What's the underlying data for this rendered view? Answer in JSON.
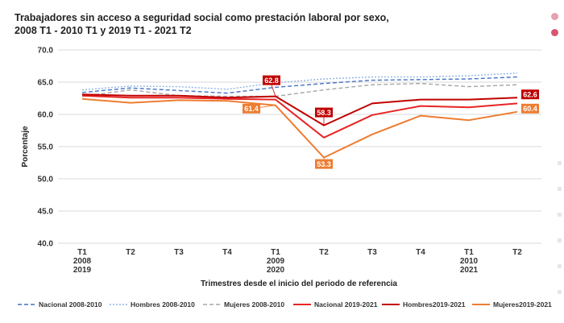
{
  "chart_data": {
    "type": "line",
    "title_lines": [
      "Trabajadores sin acceso a seguridad social como prestación laboral por sexo,",
      "2008 T1 - 2010 T1 y 2019 T1 - 2021 T2"
    ],
    "xlabel": "Trimestres desde el inicio del periodo de referencia",
    "ylabel": "Porcentaje",
    "ylim": [
      40,
      70
    ],
    "yticks": [
      "40.0",
      "45.0",
      "50.0",
      "55.0",
      "60.0",
      "65.0",
      "70.0"
    ],
    "categories": [
      [
        "T1",
        "2008",
        "2019"
      ],
      [
        "T2"
      ],
      [
        "T3"
      ],
      [
        "T4"
      ],
      [
        "T1",
        "2009",
        "2020"
      ],
      [
        "T2"
      ],
      [
        "T3"
      ],
      [
        "T4"
      ],
      [
        "T1",
        "2010",
        "2021"
      ],
      [
        "T2"
      ]
    ],
    "series": [
      {
        "name": "Nacional 2008-2010",
        "color": "#4472c4",
        "style": "dashed",
        "values": [
          63.4,
          64.1,
          63.7,
          63.3,
          64.2,
          64.8,
          65.3,
          65.4,
          65.5,
          65.8
        ]
      },
      {
        "name": "Hombres  2008-2010",
        "color": "#8fb4e3",
        "style": "dotted",
        "values": [
          63.8,
          64.4,
          64.3,
          63.9,
          64.9,
          65.5,
          65.8,
          65.8,
          66.0,
          66.4
        ]
      },
      {
        "name": "Mujeres 2008-2010",
        "color": "#a5a5a5",
        "style": "dashed",
        "values": [
          62.8,
          63.8,
          62.9,
          62.8,
          62.8,
          63.8,
          64.6,
          64.8,
          64.3,
          64.6
        ]
      },
      {
        "name": "Nacional 2019-2021",
        "color": "#e82424",
        "style": "solid",
        "values": [
          62.9,
          62.6,
          62.6,
          62.4,
          62.3,
          56.4,
          59.9,
          61.3,
          61.1,
          61.7
        ]
      },
      {
        "name": "Hombres2019-2021",
        "color": "#c00000",
        "style": "solid",
        "values": [
          63.1,
          62.9,
          62.9,
          62.6,
          62.8,
          58.3,
          61.7,
          62.3,
          62.3,
          62.6
        ]
      },
      {
        "name": "Mujeres2019-2021",
        "color": "#ed7d31",
        "style": "solid",
        "values": [
          62.4,
          61.8,
          62.2,
          62.1,
          61.4,
          53.3,
          56.9,
          59.8,
          59.1,
          60.4
        ]
      }
    ],
    "annotations": [
      {
        "text": "62.8",
        "series": 4,
        "index": 4,
        "color": "#c00000"
      },
      {
        "text": "61.4",
        "series": 5,
        "index": 4,
        "color": "#ed7d31"
      },
      {
        "text": "58.3",
        "series": 4,
        "index": 5,
        "color": "#c00000"
      },
      {
        "text": "53.3",
        "series": 5,
        "index": 5,
        "color": "#ed7d31"
      },
      {
        "text": "62.6",
        "series": 4,
        "index": 9,
        "color": "#c00000"
      },
      {
        "text": "60.4",
        "series": 5,
        "index": 9,
        "color": "#ed7d31"
      }
    ],
    "decor_colors": [
      "#e8a0b0",
      "#d9566f",
      "#e6e6e6"
    ]
  }
}
